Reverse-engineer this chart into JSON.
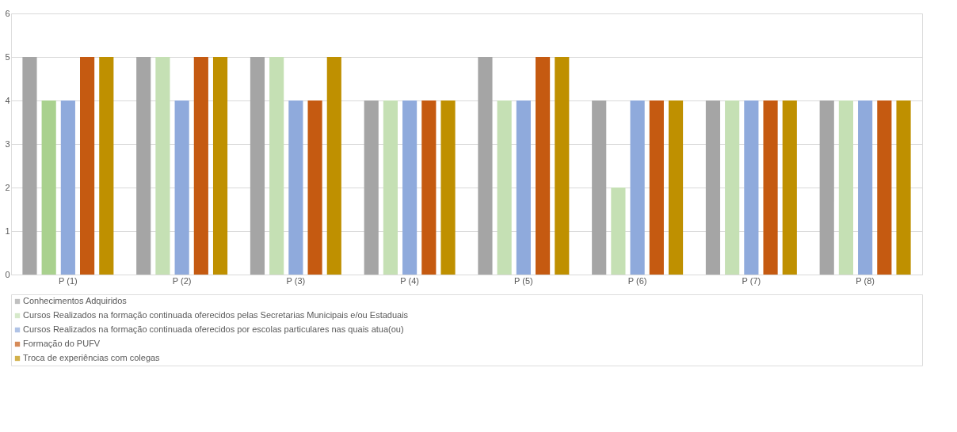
{
  "chart_data": {
    "type": "bar",
    "categories": [
      "P (1)",
      "P (2)",
      "P (3)",
      "P (4)",
      "P (5)",
      "P (6)",
      "P (7)",
      "P (8)"
    ],
    "series": [
      {
        "name": "Conhecimentos Adquiridos",
        "color": "#a5a5a5",
        "values": [
          5,
          5,
          5,
          4,
          5,
          4,
          4,
          4
        ]
      },
      {
        "name": "Cursos Realizados na formação continuada oferecidos pelas Secretarias Municipais e/ou Estaduais",
        "color": "#c5e0b4",
        "colors": [
          "#a9d18e",
          "#c5e0b4",
          "#c5e0b4",
          "#c5e0b4",
          "#c5e0b4",
          "#c5e0b4",
          "#c5e0b4",
          "#c5e0b4"
        ],
        "values": [
          4,
          5,
          5,
          4,
          4,
          2,
          4,
          4
        ]
      },
      {
        "name": "Cursos Realizados na formação continuada oferecidos por escolas particulares nas quais atua(ou)",
        "color": "#8faadc",
        "values": [
          4,
          4,
          4,
          4,
          4,
          4,
          4,
          4
        ]
      },
      {
        "name": "Formação do PUFV",
        "color": "#c55a11",
        "values": [
          5,
          5,
          4,
          4,
          5,
          4,
          4,
          4
        ]
      },
      {
        "name": "Troca de experiências com colegas",
        "color": "#bf9000",
        "values": [
          5,
          5,
          5,
          4,
          5,
          4,
          4,
          4
        ]
      }
    ],
    "ylim": [
      0,
      6
    ],
    "yticks": [
      0,
      1,
      2,
      3,
      4,
      5,
      6
    ],
    "grid": "y",
    "legend": "bottom"
  }
}
